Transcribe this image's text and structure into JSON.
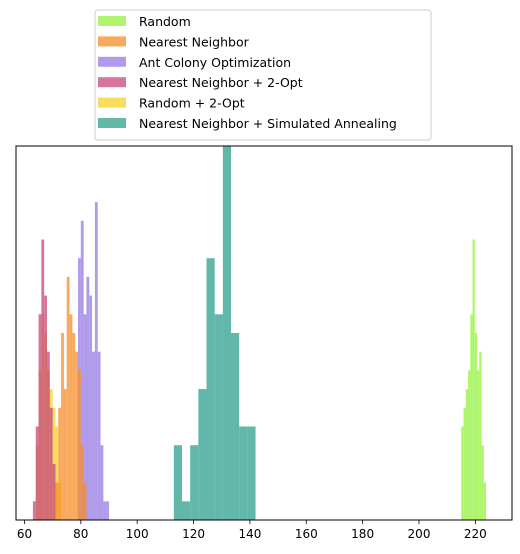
{
  "chart_data": {
    "type": "histogram",
    "title": "",
    "xlabel": "",
    "ylabel": "",
    "xlim": [
      57,
      233
    ],
    "ylim": [
      0,
      20
    ],
    "x_ticks": [
      60,
      80,
      100,
      120,
      140,
      160,
      180,
      200,
      220
    ],
    "y_ticks_visible": false,
    "grid": false,
    "legend": {
      "position": "above plot, centered",
      "draw_order": [
        "Random",
        "Nearest Neighbor",
        "Ant Colony Optimization",
        "Nearest Neighbor + 2-Opt",
        "Random + 2-Opt",
        "Nearest Neighbor + Simulated Annealing"
      ]
    },
    "series": [
      {
        "name": "Nearest Neighbor + Simulated Annealing",
        "color": "#2ca08e",
        "opacity": 0.75,
        "bin_width": 2.9,
        "bins": [
          {
            "x0": 113.0,
            "count": 4
          },
          {
            "x0": 115.9,
            "count": 1
          },
          {
            "x0": 118.8,
            "count": 4
          },
          {
            "x0": 121.7,
            "count": 7
          },
          {
            "x0": 124.6,
            "count": 14
          },
          {
            "x0": 127.5,
            "count": 11
          },
          {
            "x0": 130.4,
            "count": 20
          },
          {
            "x0": 133.3,
            "count": 10
          },
          {
            "x0": 136.2,
            "count": 5
          },
          {
            "x0": 139.1,
            "count": 5
          }
        ]
      },
      {
        "name": "Random + 2-Opt",
        "color": "#f5cf2a",
        "opacity": 0.75,
        "bin_width": 1.0,
        "bins": [
          {
            "x0": 64.0,
            "count": 4
          },
          {
            "x0": 65.0,
            "count": 8
          },
          {
            "x0": 66.0,
            "count": 11
          },
          {
            "x0": 67.0,
            "count": 10
          },
          {
            "x0": 68.0,
            "count": 8
          },
          {
            "x0": 69.0,
            "count": 7
          },
          {
            "x0": 70.0,
            "count": 6
          },
          {
            "x0": 71.0,
            "count": 5
          },
          {
            "x0": 72.0,
            "count": 2
          }
        ]
      },
      {
        "name": "Nearest Neighbor + 2-Opt",
        "color": "#c7457c",
        "opacity": 0.75,
        "bin_width": 1.0,
        "bins": [
          {
            "x0": 63.0,
            "count": 1
          },
          {
            "x0": 64.0,
            "count": 5
          },
          {
            "x0": 65.0,
            "count": 11
          },
          {
            "x0": 66.0,
            "count": 15
          },
          {
            "x0": 67.0,
            "count": 12
          },
          {
            "x0": 68.0,
            "count": 9
          },
          {
            "x0": 69.0,
            "count": 6
          },
          {
            "x0": 70.0,
            "count": 3
          }
        ]
      },
      {
        "name": "Ant Colony Optimization",
        "color": "#9678e3",
        "opacity": 0.75,
        "bin_width": 1.0,
        "bins": [
          {
            "x0": 79.0,
            "count": 14
          },
          {
            "x0": 80.0,
            "count": 16
          },
          {
            "x0": 81.0,
            "count": 11
          },
          {
            "x0": 82.0,
            "count": 13
          },
          {
            "x0": 83.0,
            "count": 12
          },
          {
            "x0": 84.0,
            "count": 9
          },
          {
            "x0": 85.0,
            "count": 17
          },
          {
            "x0": 86.0,
            "count": 9
          },
          {
            "x0": 87.0,
            "count": 4
          },
          {
            "x0": 88.0,
            "count": 1
          },
          {
            "x0": 89.0,
            "count": 1
          }
        ]
      },
      {
        "name": "Nearest Neighbor",
        "color": "#f78c26",
        "opacity": 0.75,
        "bin_width": 1.0,
        "bins": [
          {
            "x0": 71.0,
            "count": 2
          },
          {
            "x0": 72.0,
            "count": 6
          },
          {
            "x0": 73.0,
            "count": 10
          },
          {
            "x0": 74.0,
            "count": 7
          },
          {
            "x0": 75.0,
            "count": 13
          },
          {
            "x0": 76.0,
            "count": 11
          },
          {
            "x0": 77.0,
            "count": 10
          },
          {
            "x0": 78.0,
            "count": 9
          },
          {
            "x0": 79.0,
            "count": 8
          },
          {
            "x0": 80.0,
            "count": 4
          },
          {
            "x0": 81.0,
            "count": 2
          }
        ]
      },
      {
        "name": "Random",
        "color": "#93f23c",
        "opacity": 0.75,
        "bin_width": 0.8,
        "bins": [
          {
            "x0": 215.0,
            "count": 5
          },
          {
            "x0": 215.8,
            "count": 6
          },
          {
            "x0": 216.6,
            "count": 7
          },
          {
            "x0": 217.4,
            "count": 8
          },
          {
            "x0": 218.2,
            "count": 11
          },
          {
            "x0": 219.0,
            "count": 15
          },
          {
            "x0": 219.8,
            "count": 10
          },
          {
            "x0": 220.6,
            "count": 8
          },
          {
            "x0": 221.4,
            "count": 9
          },
          {
            "x0": 222.2,
            "count": 4
          },
          {
            "x0": 223.0,
            "count": 2
          }
        ]
      }
    ]
  }
}
